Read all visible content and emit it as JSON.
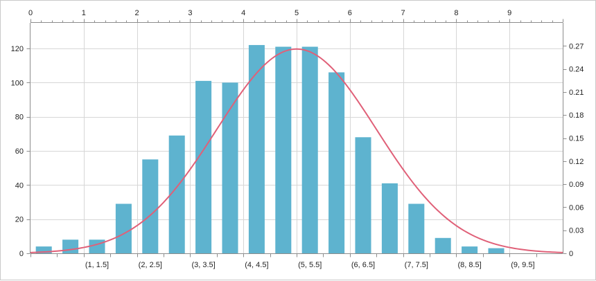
{
  "chart_data": {
    "type": "bar",
    "categories": [
      "(0, 0.5]",
      "(0.5, 1]",
      "(1, 1.5]",
      "(1.5, 2]",
      "(2, 2.5]",
      "(2.5, 3]",
      "(3, 3.5]",
      "(3.5, 4]",
      "(4, 4.5]",
      "(4.5, 5]",
      "(5, 5.5]",
      "(5.5, 6]",
      "(6, 6.5]",
      "(6.5, 7]",
      "(7, 7.5]",
      "(7.5, 8]",
      "(8, 8.5]",
      "(8.5, 9]",
      "(9, 9.5]"
    ],
    "visible_category_labels": [
      "(1, 1.5]",
      "(2, 2.5]",
      "(3, 3.5]",
      "(4, 4.5]",
      "(5, 5.5]",
      "(6, 6.5]",
      "(7, 7.5]",
      "(8, 8.5]",
      "(9, 9.5]"
    ],
    "series": [
      {
        "type": "bar",
        "axis": "left",
        "values": [
          4,
          8,
          8,
          29,
          55,
          69,
          101,
          100,
          122,
          121,
          121,
          106,
          68,
          41,
          29,
          9,
          4,
          3,
          0
        ]
      },
      {
        "type": "line",
        "axis": "right",
        "distribution": "normal",
        "mean": 5,
        "std_dev": 1.5,
        "x_range": [
          0,
          10
        ]
      }
    ],
    "left_axis": {
      "ticks": [
        0,
        20,
        40,
        60,
        80,
        100,
        120
      ],
      "range": [
        0,
        135
      ]
    },
    "right_axis": {
      "ticks": [
        "0",
        "0.03",
        "0.06",
        "0.09",
        "0.12",
        "0.15",
        "0.18",
        "0.21",
        "0.24",
        "0.27"
      ],
      "range": [
        0,
        0.3
      ]
    },
    "top_axis": {
      "ticks": [
        0,
        1,
        2,
        3,
        4,
        5,
        6,
        7,
        8,
        9
      ],
      "range": [
        0,
        10
      ]
    },
    "grid": true,
    "colors": {
      "bar": "#5eb3cf",
      "curve": "#e06078",
      "grid": "#d6d6d6",
      "axis": "#8c8c8c"
    }
  }
}
